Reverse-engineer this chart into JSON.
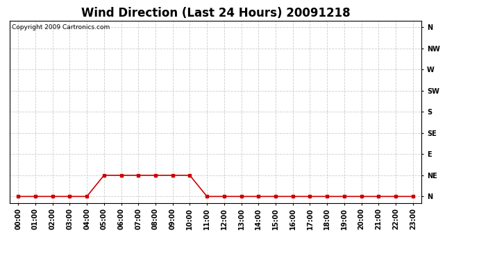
{
  "title": "Wind Direction (Last 24 Hours) 20091218",
  "copyright_text": "Copyright 2009 Cartronics.com",
  "line_color": "#cc0000",
  "bg_color": "#ffffff",
  "grid_color": "#cccccc",
  "hours": [
    0,
    1,
    2,
    3,
    4,
    5,
    6,
    7,
    8,
    9,
    10,
    11,
    12,
    13,
    14,
    15,
    16,
    17,
    18,
    19,
    20,
    21,
    22,
    23
  ],
  "values": [
    0,
    0,
    0,
    0,
    0,
    1,
    1,
    1,
    1,
    1,
    1,
    0,
    0,
    0,
    0,
    0,
    0,
    0,
    0,
    0,
    0,
    0,
    0,
    0
  ],
  "ytick_labels": [
    "N",
    "NE",
    "E",
    "SE",
    "S",
    "SW",
    "W",
    "NW",
    "N"
  ],
  "ytick_values": [
    0,
    1,
    2,
    3,
    4,
    5,
    6,
    7,
    8
  ],
  "xlabel_times": [
    "00:00",
    "01:00",
    "02:00",
    "03:00",
    "04:00",
    "05:00",
    "06:00",
    "07:00",
    "08:00",
    "09:00",
    "10:00",
    "11:00",
    "12:00",
    "13:00",
    "14:00",
    "15:00",
    "16:00",
    "17:00",
    "18:00",
    "19:00",
    "20:00",
    "21:00",
    "22:00",
    "23:00"
  ],
  "marker": "s",
  "marker_size": 2.5,
  "line_width": 1.2,
  "title_fontsize": 12,
  "tick_fontsize": 7,
  "copyright_fontsize": 6.5,
  "ylim_min": -0.3,
  "ylim_max": 8.3
}
